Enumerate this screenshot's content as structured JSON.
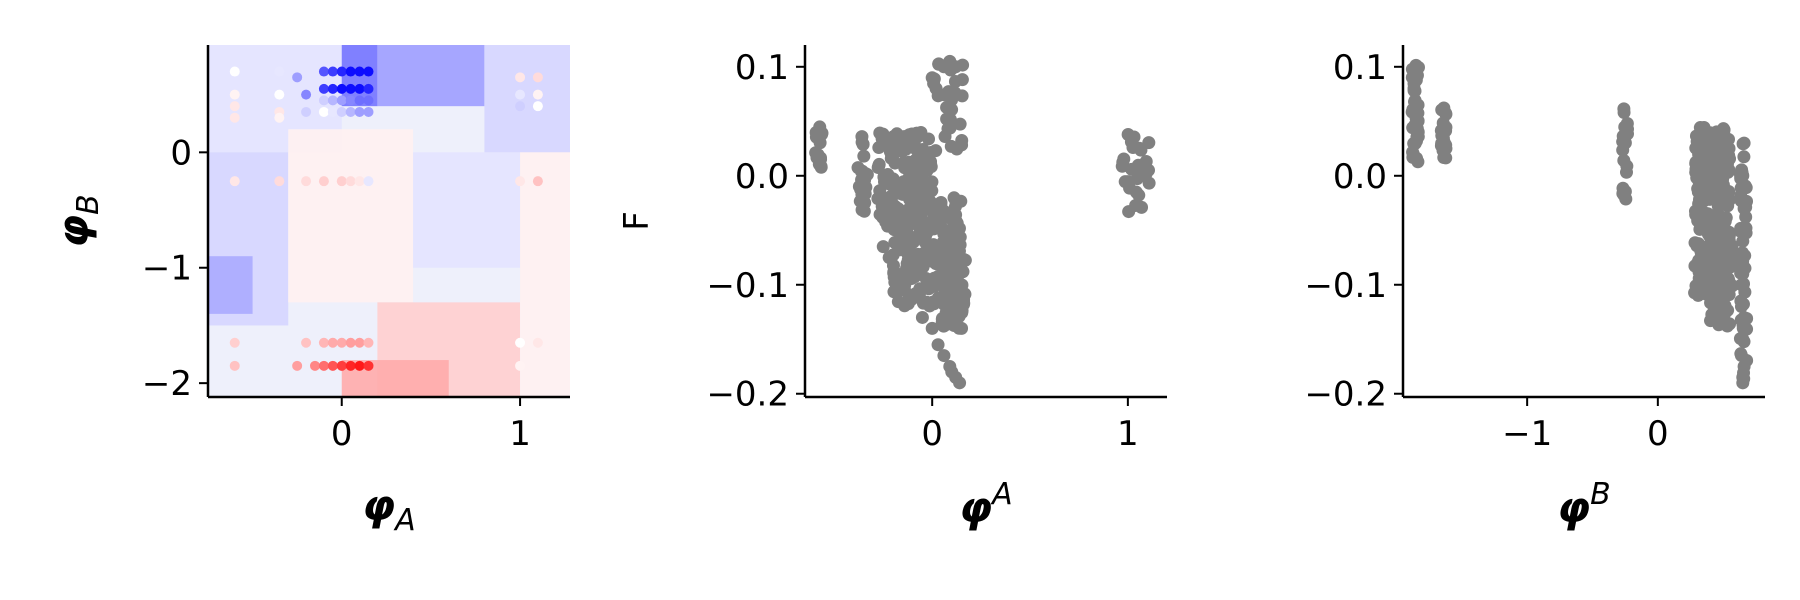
{
  "chart_data": [
    {
      "type": "heatmap",
      "xlabel": "φ",
      "xlabel_sub": "A",
      "ylabel": "φ",
      "ylabel_sub": "B",
      "xlim": [
        -0.75,
        1.28
      ],
      "ylim": [
        -2.12,
        0.93
      ],
      "x_ticks": [
        0,
        1
      ],
      "x_tick_labels": [
        "0",
        "1"
      ],
      "y_ticks": [
        0,
        -1,
        -2
      ],
      "y_tick_labels": [
        "0",
        "−1",
        "−2"
      ],
      "colormap": "bwr",
      "value_range": [
        -0.2,
        0.1
      ],
      "grid": false,
      "contour_cells": [
        {
          "x": [
            -0.75,
            0.0
          ],
          "y": [
            0.0,
            0.93
          ],
          "value": 0.02
        },
        {
          "x": [
            0.0,
            0.2
          ],
          "y": [
            0.4,
            0.93
          ],
          "value": 0.12
        },
        {
          "x": [
            0.2,
            0.8
          ],
          "y": [
            0.4,
            0.93
          ],
          "value": 0.07
        },
        {
          "x": [
            0.8,
            1.28
          ],
          "y": [
            0.0,
            0.93
          ],
          "value": 0.03
        },
        {
          "x": [
            -0.75,
            -0.3
          ],
          "y": [
            -1.5,
            0.0
          ],
          "value": 0.03
        },
        {
          "x": [
            -0.3,
            0.4
          ],
          "y": [
            -1.3,
            0.2
          ],
          "value": -0.02
        },
        {
          "x": [
            0.4,
            1.0
          ],
          "y": [
            -1.0,
            0.0
          ],
          "value": 0.02
        },
        {
          "x": [
            -0.75,
            -0.5
          ],
          "y": [
            -1.4,
            -0.9
          ],
          "value": 0.06
        },
        {
          "x": [
            0.2,
            1.0
          ],
          "y": [
            -2.12,
            -1.3
          ],
          "value": -0.07
        },
        {
          "x": [
            0.0,
            0.6
          ],
          "y": [
            -2.12,
            -1.8
          ],
          "value": -0.12
        },
        {
          "x": [
            1.0,
            1.28
          ],
          "y": [
            -2.12,
            0.0
          ],
          "value": -0.02
        }
      ],
      "points": [
        {
          "x": -0.6,
          "y": 0.7,
          "value": 0.0
        },
        {
          "x": -0.6,
          "y": 0.5,
          "value": -0.01
        },
        {
          "x": -0.6,
          "y": 0.4,
          "value": -0.02
        },
        {
          "x": -0.6,
          "y": 0.3,
          "value": -0.02
        },
        {
          "x": -0.35,
          "y": 0.7,
          "value": 0.01
        },
        {
          "x": -0.35,
          "y": 0.5,
          "value": 0.0
        },
        {
          "x": -0.35,
          "y": 0.35,
          "value": -0.02
        },
        {
          "x": -0.35,
          "y": 0.3,
          "value": -0.01
        },
        {
          "x": -0.25,
          "y": 0.65,
          "value": 0.04
        },
        {
          "x": -0.2,
          "y": 0.5,
          "value": 0.05
        },
        {
          "x": -0.2,
          "y": 0.35,
          "value": 0.02
        },
        {
          "x": -0.1,
          "y": 0.7,
          "value": 0.07
        },
        {
          "x": -0.05,
          "y": 0.7,
          "value": 0.08
        },
        {
          "x": 0.0,
          "y": 0.7,
          "value": 0.09
        },
        {
          "x": 0.05,
          "y": 0.7,
          "value": 0.1
        },
        {
          "x": 0.1,
          "y": 0.7,
          "value": 0.1
        },
        {
          "x": 0.15,
          "y": 0.7,
          "value": 0.1
        },
        {
          "x": -0.1,
          "y": 0.55,
          "value": 0.08
        },
        {
          "x": -0.05,
          "y": 0.55,
          "value": 0.09
        },
        {
          "x": 0.0,
          "y": 0.55,
          "value": 0.1
        },
        {
          "x": 0.05,
          "y": 0.55,
          "value": 0.1
        },
        {
          "x": 0.1,
          "y": 0.55,
          "value": 0.1
        },
        {
          "x": 0.15,
          "y": 0.55,
          "value": 0.09
        },
        {
          "x": -0.1,
          "y": 0.45,
          "value": 0.02
        },
        {
          "x": -0.05,
          "y": 0.45,
          "value": 0.03
        },
        {
          "x": 0.0,
          "y": 0.45,
          "value": 0.04
        },
        {
          "x": 0.05,
          "y": 0.45,
          "value": 0.05
        },
        {
          "x": 0.1,
          "y": 0.45,
          "value": 0.06
        },
        {
          "x": 0.15,
          "y": 0.45,
          "value": 0.06
        },
        {
          "x": -0.1,
          "y": 0.35,
          "value": 0.0
        },
        {
          "x": -0.05,
          "y": 0.35,
          "value": 0.01
        },
        {
          "x": 0.0,
          "y": 0.35,
          "value": 0.02
        },
        {
          "x": 0.05,
          "y": 0.35,
          "value": 0.03
        },
        {
          "x": 0.1,
          "y": 0.35,
          "value": 0.04
        },
        {
          "x": 0.15,
          "y": 0.35,
          "value": 0.04
        },
        {
          "x": -0.6,
          "y": -0.25,
          "value": -0.02
        },
        {
          "x": -0.35,
          "y": -0.25,
          "value": -0.03
        },
        {
          "x": -0.2,
          "y": -0.25,
          "value": -0.03
        },
        {
          "x": -0.1,
          "y": -0.25,
          "value": -0.04
        },
        {
          "x": 0.0,
          "y": -0.25,
          "value": -0.04
        },
        {
          "x": 0.05,
          "y": -0.25,
          "value": -0.03
        },
        {
          "x": 0.1,
          "y": -0.25,
          "value": -0.02
        },
        {
          "x": 0.15,
          "y": -0.25,
          "value": 0.01
        },
        {
          "x": -0.6,
          "y": -1.65,
          "value": -0.04
        },
        {
          "x": -0.2,
          "y": -1.65,
          "value": -0.05
        },
        {
          "x": -0.1,
          "y": -1.65,
          "value": -0.06
        },
        {
          "x": -0.05,
          "y": -1.65,
          "value": -0.07
        },
        {
          "x": 0.0,
          "y": -1.65,
          "value": -0.07
        },
        {
          "x": 0.05,
          "y": -1.65,
          "value": -0.08
        },
        {
          "x": 0.1,
          "y": -1.65,
          "value": -0.08
        },
        {
          "x": 0.15,
          "y": -1.65,
          "value": -0.06
        },
        {
          "x": -0.6,
          "y": -1.85,
          "value": -0.05
        },
        {
          "x": -0.25,
          "y": -1.85,
          "value": -0.08
        },
        {
          "x": -0.15,
          "y": -1.85,
          "value": -0.1
        },
        {
          "x": -0.1,
          "y": -1.85,
          "value": -0.12
        },
        {
          "x": -0.05,
          "y": -1.85,
          "value": -0.14
        },
        {
          "x": 0.0,
          "y": -1.85,
          "value": -0.16
        },
        {
          "x": 0.05,
          "y": -1.85,
          "value": -0.18
        },
        {
          "x": 0.1,
          "y": -1.85,
          "value": -0.19
        },
        {
          "x": 0.15,
          "y": -1.85,
          "value": -0.17
        },
        {
          "x": 1.0,
          "y": 0.65,
          "value": -0.02
        },
        {
          "x": 1.1,
          "y": 0.65,
          "value": -0.03
        },
        {
          "x": 1.0,
          "y": 0.5,
          "value": 0.01
        },
        {
          "x": 1.1,
          "y": 0.5,
          "value": -0.01
        },
        {
          "x": 1.0,
          "y": 0.4,
          "value": 0.02
        },
        {
          "x": 1.1,
          "y": 0.4,
          "value": 0.0
        },
        {
          "x": 1.0,
          "y": -0.25,
          "value": -0.02
        },
        {
          "x": 1.1,
          "y": -0.25,
          "value": -0.05
        },
        {
          "x": 1.0,
          "y": -1.65,
          "value": 0.0
        },
        {
          "x": 1.1,
          "y": -1.65,
          "value": -0.02
        },
        {
          "x": 1.0,
          "y": -1.85,
          "value": -0.01
        }
      ]
    },
    {
      "type": "scatter",
      "xlabel": "φ",
      "xlabel_sup": "A",
      "ylabel": "F",
      "xlim": [
        -0.65,
        1.2
      ],
      "ylim": [
        -0.203,
        0.12
      ],
      "x_ticks": [
        0,
        1
      ],
      "x_tick_labels": [
        "0",
        "1"
      ],
      "y_ticks": [
        0.1,
        0.0,
        -0.1,
        -0.2
      ],
      "y_tick_labels": [
        "0.1",
        "0.0",
        "−0.1",
        "−0.2"
      ],
      "color": "#808080",
      "grid": false,
      "clusters": [
        {
          "x": [
            -0.6,
            -0.56
          ],
          "y": [
            0.0,
            0.045
          ],
          "n": 16
        },
        {
          "x": [
            -0.38,
            -0.33
          ],
          "y": [
            -0.033,
            0.04
          ],
          "n": 24
        },
        {
          "x": [
            -0.28,
            0.0
          ],
          "y": [
            -0.05,
            0.04
          ],
          "n": 140
        },
        {
          "x": [
            -0.2,
            0.15
          ],
          "y": [
            -0.12,
            -0.02
          ],
          "n": 200
        },
        {
          "x": [
            0.05,
            0.17
          ],
          "y": [
            -0.14,
            -0.06
          ],
          "n": 70
        },
        {
          "x": [
            0.0,
            0.16
          ],
          "y": [
            0.02,
            0.105
          ],
          "n": 30
        },
        {
          "x": [
            0.97,
            1.12
          ],
          "y": [
            -0.033,
            0.042
          ],
          "n": 30
        }
      ],
      "points": [
        {
          "x": 0.06,
          "y": 0.1
        },
        {
          "x": 0.09,
          "y": 0.105
        },
        {
          "x": 0.12,
          "y": 0.1
        },
        {
          "x": 0.0,
          "y": 0.09
        },
        {
          "x": 0.02,
          "y": 0.08
        },
        {
          "x": -0.25,
          "y": -0.065
        },
        {
          "x": -0.22,
          "y": -0.075
        },
        {
          "x": -0.18,
          "y": -0.09
        },
        {
          "x": -0.14,
          "y": -0.1
        },
        {
          "x": -0.1,
          "y": -0.11
        },
        {
          "x": -0.05,
          "y": -0.13
        },
        {
          "x": 0.0,
          "y": -0.14
        },
        {
          "x": 0.03,
          "y": -0.155
        },
        {
          "x": 0.06,
          "y": -0.165
        },
        {
          "x": 0.09,
          "y": -0.175
        },
        {
          "x": 0.12,
          "y": -0.185
        },
        {
          "x": 0.14,
          "y": -0.19
        },
        {
          "x": 0.1,
          "y": -0.18
        },
        {
          "x": 0.15,
          "y": -0.14
        }
      ]
    },
    {
      "type": "scatter",
      "xlabel": "φ",
      "xlabel_sup": "B",
      "ylabel": "",
      "xlim": [
        -1.95,
        0.82
      ],
      "ylim": [
        -0.203,
        0.12
      ],
      "x_ticks": [
        -1,
        0
      ],
      "x_tick_labels": [
        "−1",
        "0"
      ],
      "y_ticks": [
        0.1,
        0.0,
        -0.1,
        -0.2
      ],
      "y_tick_labels": [
        "0.1",
        "0.0",
        "−0.1",
        "−0.2"
      ],
      "color": "#808080",
      "grid": false,
      "clusters": [
        {
          "x": [
            -1.88,
            -1.83
          ],
          "y": [
            0.008,
            0.105
          ],
          "n": 40
        },
        {
          "x": [
            -1.66,
            -1.62
          ],
          "y": [
            0.012,
            0.068
          ],
          "n": 20
        },
        {
          "x": [
            -0.27,
            -0.23
          ],
          "y": [
            -0.022,
            0.065
          ],
          "n": 18
        },
        {
          "x": [
            0.28,
            0.55
          ],
          "y": [
            -0.11,
            0.045
          ],
          "n": 280
        },
        {
          "x": [
            0.4,
            0.58
          ],
          "y": [
            -0.14,
            -0.06
          ],
          "n": 60
        },
        {
          "x": [
            0.63,
            0.68
          ],
          "y": [
            -0.19,
            0.03
          ],
          "n": 45
        }
      ],
      "points": [
        {
          "x": 0.65,
          "y": -0.19
        },
        {
          "x": 0.65,
          "y": -0.185
        },
        {
          "x": 0.66,
          "y": -0.175
        },
        {
          "x": 0.64,
          "y": -0.165
        },
        {
          "x": 0.65,
          "y": -0.15
        },
        {
          "x": 0.66,
          "y": -0.13
        },
        {
          "x": 0.64,
          "y": -0.12
        },
        {
          "x": 0.65,
          "y": -0.09
        },
        {
          "x": 0.65,
          "y": -0.06
        },
        {
          "x": 0.66,
          "y": -0.03
        },
        {
          "x": 0.65,
          "y": 0.0
        },
        {
          "x": 0.66,
          "y": 0.03
        }
      ]
    }
  ]
}
